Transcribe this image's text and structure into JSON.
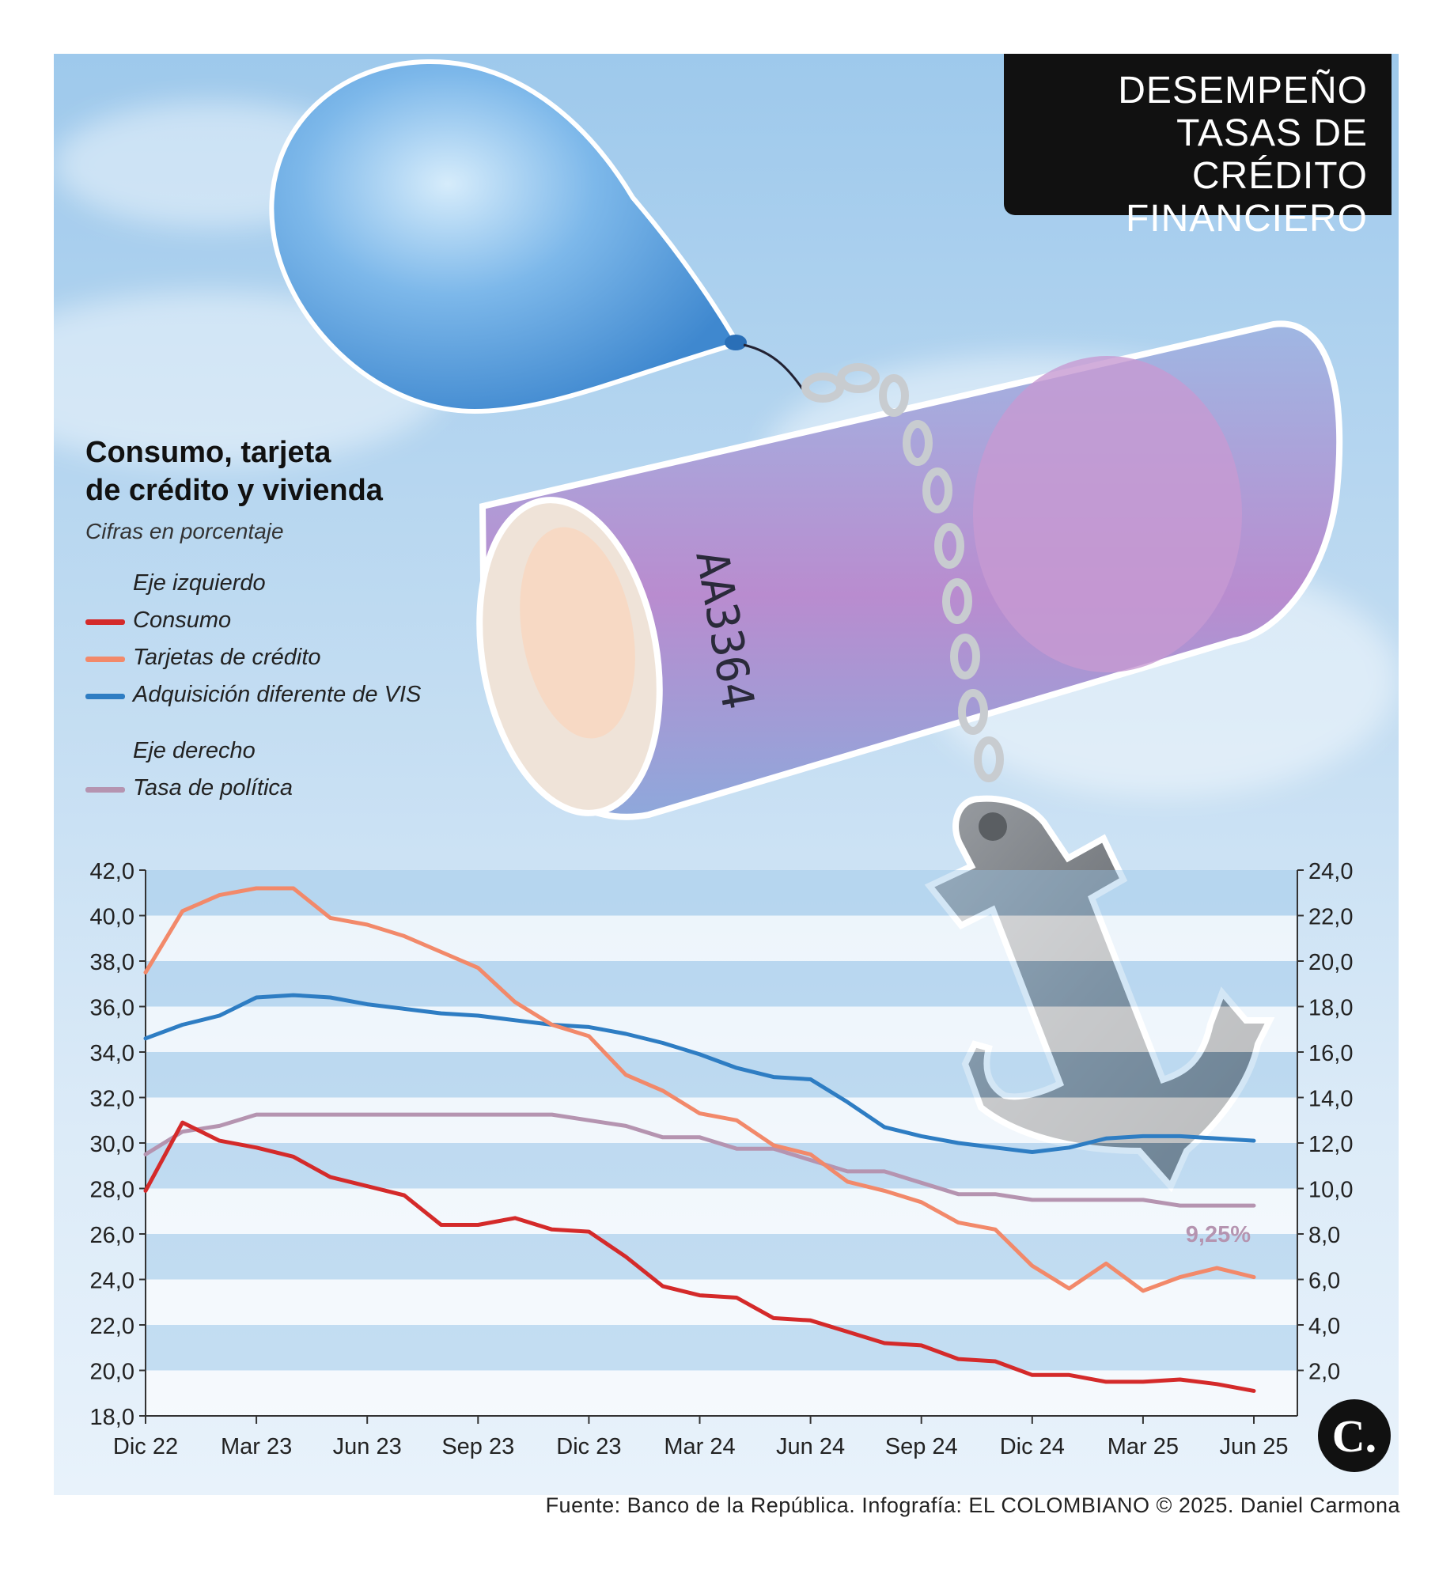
{
  "header": {
    "title_line1": "DESEMPEÑO",
    "title_line2": "TASAS DE CRÉDITO",
    "title_line3": "FINANCIERO"
  },
  "illustration": {
    "banknote_serial": "AA3364",
    "icons": [
      "balloon-icon",
      "banknote-roll-icon",
      "chain-icon",
      "anchor-icon"
    ]
  },
  "legend": {
    "heading_line1": "Consumo, tarjeta",
    "heading_line2": "de crédito y vivienda",
    "subtitle": "Cifras en porcentaje",
    "left_axis_label": "Eje izquierdo",
    "right_axis_label": "Eje derecho",
    "items": [
      {
        "label": "Consumo",
        "color": "#d42a2a"
      },
      {
        "label": "Tarjetas de crédito",
        "color": "#f2896a"
      },
      {
        "label": "Adquisición diferente de VIS",
        "color": "#2e7dc3"
      },
      {
        "label": "Tasa de política",
        "color": "#b594b0"
      }
    ]
  },
  "chart_data": {
    "type": "line",
    "x_tick_labels": [
      "Dic 22",
      "Mar 23",
      "Jun 23",
      "Sep 23",
      "Dic 23",
      "Mar 24",
      "Jun 24",
      "Sep 24",
      "Dic 24",
      "Mar 25",
      "Jun 25"
    ],
    "months": [
      "Dic 22",
      "Ene 23",
      "Feb 23",
      "Mar 23",
      "Abr 23",
      "May 23",
      "Jun 23",
      "Jul 23",
      "Ago 23",
      "Sep 23",
      "Oct 23",
      "Nov 23",
      "Dic 23",
      "Ene 24",
      "Feb 24",
      "Mar 24",
      "Abr 24",
      "May 24",
      "Jun 24",
      "Jul 24",
      "Ago 24",
      "Sep 24",
      "Oct 24",
      "Nov 24",
      "Dic 24",
      "Ene 25",
      "Feb 25",
      "Mar 25",
      "Abr 25",
      "May 25",
      "Jun 25"
    ],
    "y_left": {
      "min": 18,
      "max": 42,
      "ticks": [
        "18,0",
        "20,0",
        "22,0",
        "24,0",
        "26,0",
        "28,0",
        "30,0",
        "32,0",
        "34,0",
        "36,0",
        "38,0",
        "40,0",
        "42,0"
      ]
    },
    "y_right": {
      "min": 0,
      "max": 24,
      "ticks": [
        "2,0",
        "4,0",
        "6,0",
        "8,0",
        "10,0",
        "12,0",
        "14,0",
        "16,0",
        "18,0",
        "20,0",
        "22,0",
        "24,0"
      ]
    },
    "series": [
      {
        "name": "Consumo",
        "axis": "left",
        "color": "#d42a2a",
        "values": [
          27.9,
          30.9,
          30.1,
          29.8,
          29.4,
          28.5,
          28.1,
          27.7,
          26.4,
          26.4,
          26.7,
          26.2,
          26.1,
          25.0,
          23.7,
          23.3,
          23.2,
          22.3,
          22.2,
          21.7,
          21.2,
          21.1,
          20.5,
          20.4,
          19.8,
          19.8,
          19.5,
          19.5,
          19.6,
          19.4,
          19.1
        ]
      },
      {
        "name": "Tarjetas de crédito",
        "axis": "left",
        "color": "#f2896a",
        "values": [
          37.5,
          40.2,
          40.9,
          41.2,
          41.2,
          39.9,
          39.6,
          39.1,
          38.4,
          37.7,
          36.2,
          35.2,
          34.7,
          33.0,
          32.3,
          31.3,
          31.0,
          29.9,
          29.5,
          28.3,
          27.9,
          27.4,
          26.5,
          26.2,
          24.6,
          23.6,
          24.7,
          23.5,
          24.1,
          24.5,
          24.1
        ]
      },
      {
        "name": "Adquisición diferente de VIS",
        "axis": "left",
        "color": "#2e7dc3",
        "values": [
          34.6,
          35.2,
          35.6,
          36.4,
          36.5,
          36.4,
          36.1,
          35.9,
          35.7,
          35.6,
          35.4,
          35.2,
          35.1,
          34.8,
          34.4,
          33.9,
          33.3,
          32.9,
          32.8,
          31.8,
          30.7,
          30.3,
          30.0,
          29.8,
          29.6,
          29.8,
          30.2,
          30.3,
          30.3,
          30.2,
          30.1
        ]
      },
      {
        "name": "Tasa de política",
        "axis": "right",
        "color": "#b594b0",
        "values": [
          11.5,
          12.5,
          12.75,
          13.25,
          13.25,
          13.25,
          13.25,
          13.25,
          13.25,
          13.25,
          13.25,
          13.25,
          13.0,
          12.75,
          12.25,
          12.25,
          11.75,
          11.75,
          11.25,
          10.75,
          10.75,
          10.25,
          9.75,
          9.75,
          9.5,
          9.5,
          9.5,
          9.5,
          9.25,
          9.25,
          9.25
        ]
      }
    ],
    "annotation": {
      "text": "9,25%",
      "series": "Tasa de política"
    },
    "grid": "horizontal alternating bands"
  },
  "brand": {
    "logo_letter": "C."
  },
  "footer": {
    "source": "Fuente: Banco de la República. Infografía: EL COLOMBIANO © 2025. Daniel Carmona"
  }
}
